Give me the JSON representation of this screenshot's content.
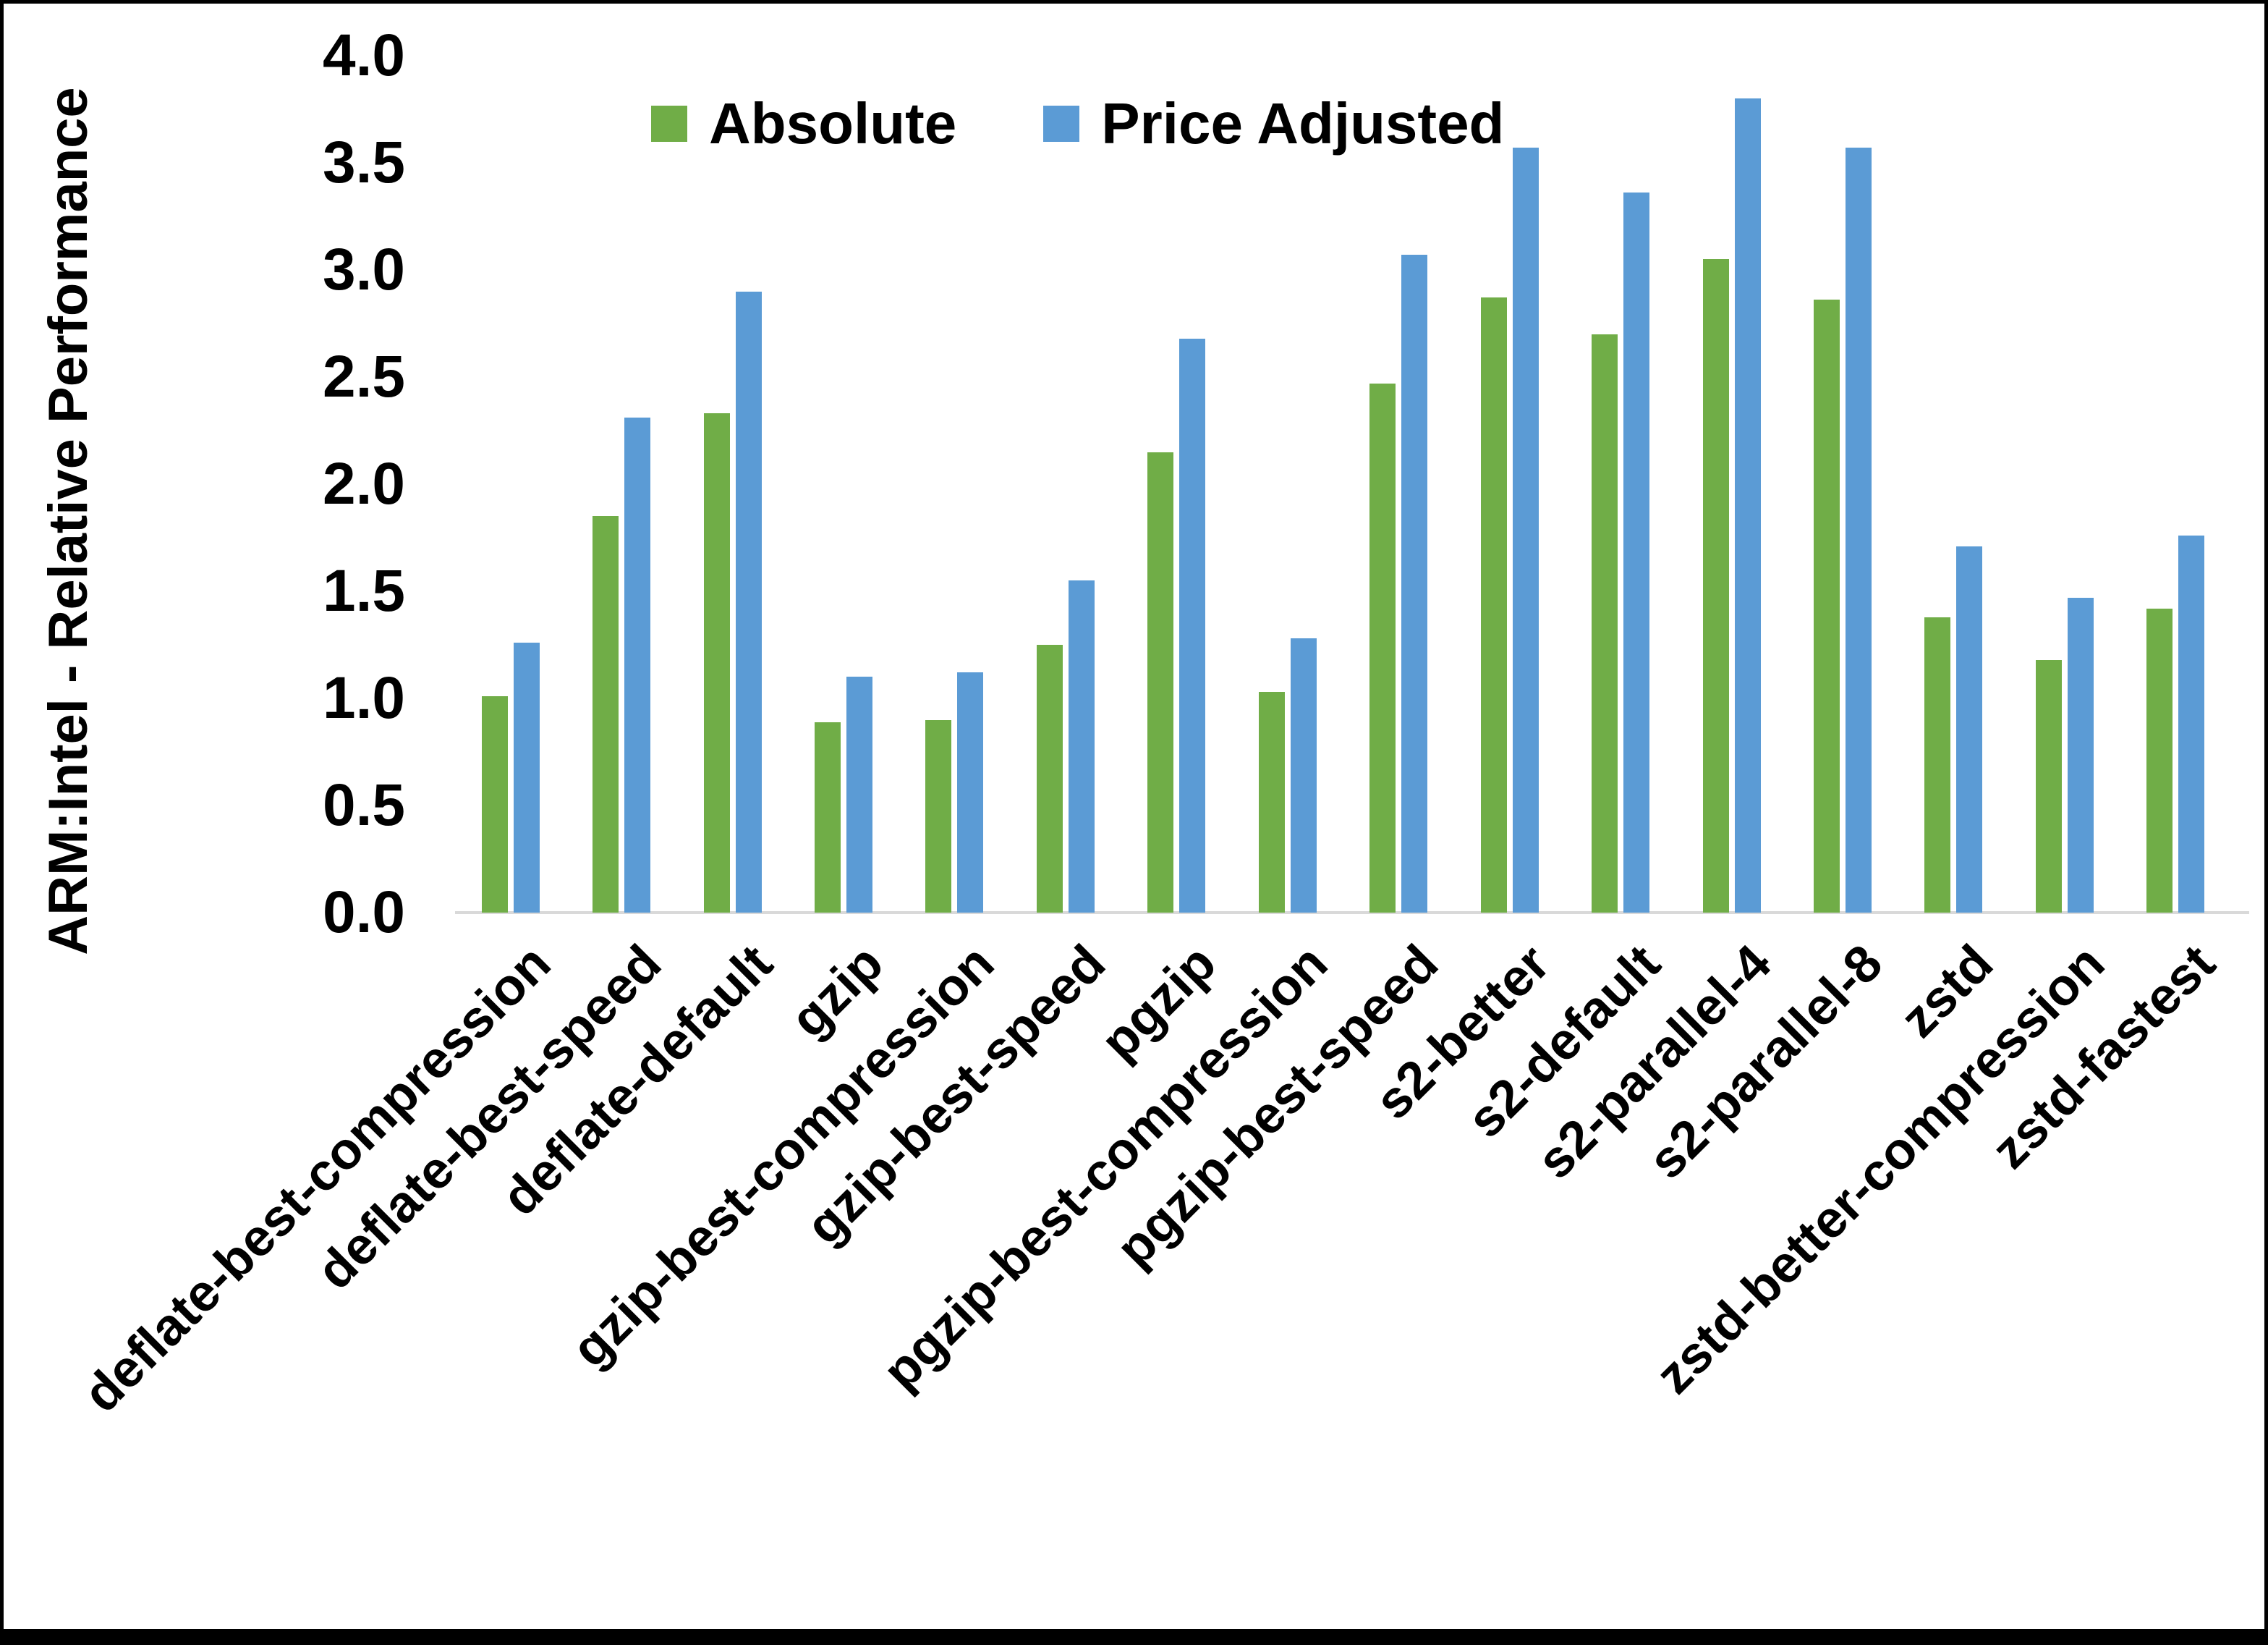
{
  "chart": {
    "y_axis_title": "ARM:Intel - Relative Performance",
    "y_ticks": [
      "4.0",
      "3.5",
      "3.0",
      "2.5",
      "2.0",
      "1.5",
      "1.0",
      "0.5",
      "0.0"
    ],
    "colors": {
      "absolute": "#70AD47",
      "price_adjusted": "#5B9BD5",
      "axis_line": "#D9D9D9"
    }
  },
  "chart_data": {
    "type": "bar",
    "title": "",
    "xlabel": "",
    "ylabel": "ARM:Intel - Relative Performance",
    "ylim": [
      0,
      4
    ],
    "ytick_step": 0.5,
    "grid": false,
    "legend_position": "top-center",
    "categories": [
      "deflate-best-compression",
      "deflate-best-speed",
      "deflate-default",
      "gzip",
      "gzip-best-compression",
      "gzip-best-speed",
      "pgzip",
      "pgzip-best-compression",
      "pgzip-best-speed",
      "s2-better",
      "s2-default",
      "s2-parallel-4",
      "s2-parallel-8",
      "zstd",
      "zstd-better-compression",
      "zstd-fastest"
    ],
    "series": [
      {
        "name": "Absolute",
        "color": "#70AD47",
        "values": [
          1.01,
          1.85,
          2.33,
          0.89,
          0.9,
          1.25,
          2.15,
          1.03,
          2.47,
          2.87,
          2.7,
          3.05,
          2.86,
          1.38,
          1.18,
          1.42
        ]
      },
      {
        "name": "Price Adjusted",
        "color": "#5B9BD5",
        "values": [
          1.26,
          2.31,
          2.9,
          1.1,
          1.12,
          1.55,
          2.68,
          1.28,
          3.07,
          3.57,
          3.36,
          3.8,
          3.57,
          1.71,
          1.47,
          1.76
        ]
      }
    ]
  }
}
